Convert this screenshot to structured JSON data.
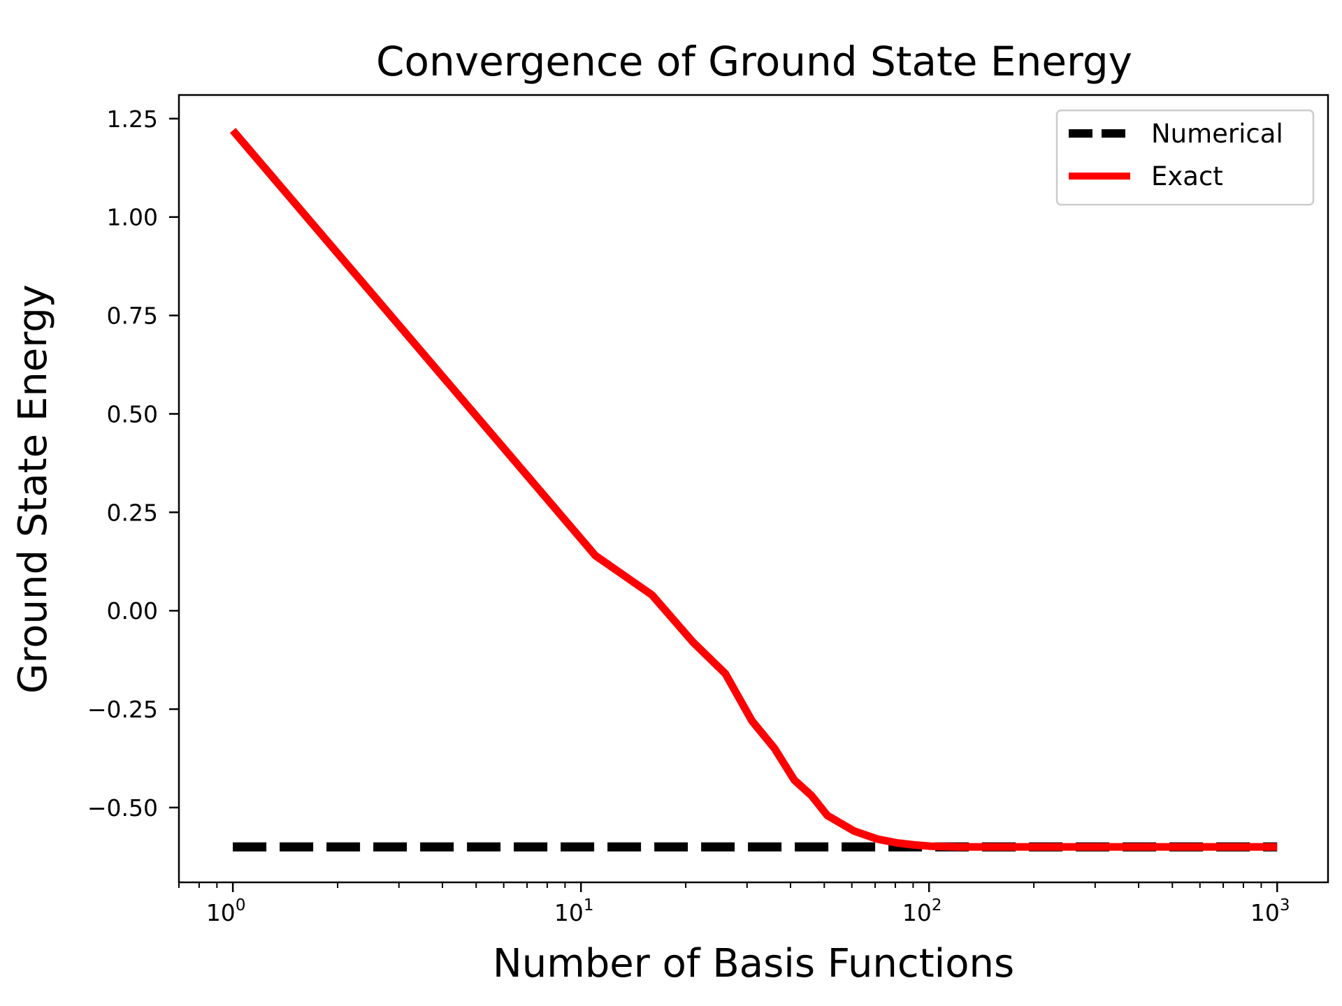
{
  "chart_data": {
    "type": "line",
    "title": "Convergence of Ground State Energy",
    "xlabel": "Number of Basis Functions",
    "ylabel": "Ground State Energy",
    "xscale": "log",
    "xlim": [
      0.7,
      1400
    ],
    "ylim": [
      -0.69,
      1.31
    ],
    "x_ticks": [
      {
        "value": 1,
        "base": "10",
        "exp": "0"
      },
      {
        "value": 10,
        "base": "10",
        "exp": "1"
      },
      {
        "value": 100,
        "base": "10",
        "exp": "2"
      },
      {
        "value": 1000,
        "base": "10",
        "exp": "3"
      }
    ],
    "y_ticks": [
      {
        "value": 1.25,
        "label": "1.25"
      },
      {
        "value": 1.0,
        "label": "1.00"
      },
      {
        "value": 0.75,
        "label": "0.75"
      },
      {
        "value": 0.5,
        "label": "0.50"
      },
      {
        "value": 0.25,
        "label": "0.25"
      },
      {
        "value": 0.0,
        "label": "0.00"
      },
      {
        "value": -0.25,
        "label": "−0.25"
      },
      {
        "value": -0.5,
        "label": "−0.50"
      }
    ],
    "grid": false,
    "legend_position": "top-right",
    "series": [
      {
        "name": "Numerical",
        "style": "dashed",
        "color": "#000000",
        "x": [
          1,
          1000
        ],
        "y": [
          -0.6,
          -0.6
        ]
      },
      {
        "name": "Exact",
        "style": "solid",
        "color": "#ff0000",
        "x": [
          1,
          11,
          16,
          21,
          26,
          31,
          36,
          41,
          46,
          51,
          61,
          71,
          81,
          91,
          101,
          121,
          151,
          201,
          301,
          501,
          1000
        ],
        "y": [
          1.22,
          0.14,
          0.04,
          -0.08,
          -0.16,
          -0.28,
          -0.35,
          -0.43,
          -0.47,
          -0.52,
          -0.56,
          -0.58,
          -0.59,
          -0.595,
          -0.598,
          -0.6,
          -0.6,
          -0.6,
          -0.6,
          -0.6,
          -0.6
        ]
      }
    ]
  }
}
